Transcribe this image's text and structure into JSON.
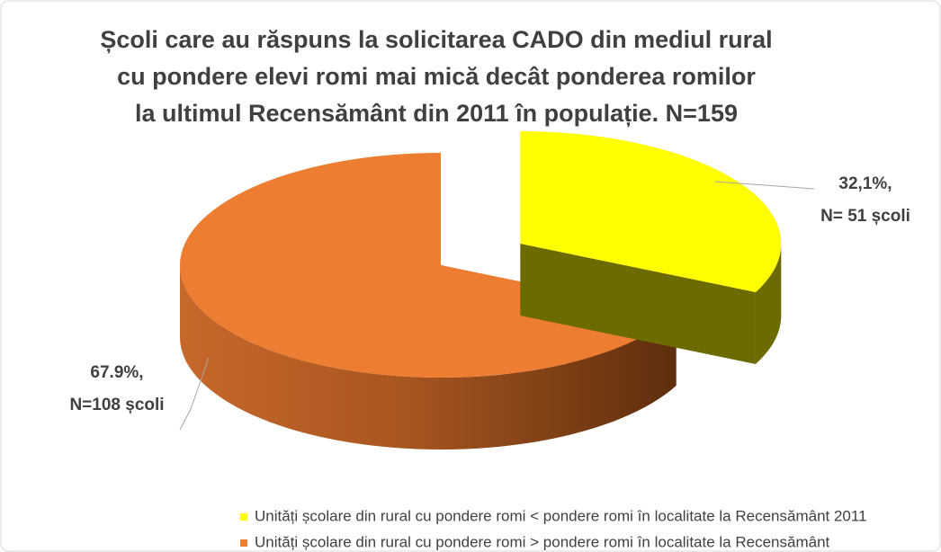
{
  "chart_data": {
    "type": "pie3d",
    "title": [
      "Școli care au răspuns la solicitarea CADO din mediul rural",
      "cu pondere elevi romi mai mică decât ponderea romilor",
      "la ultimul Recensământ din 2011 în populație. N=159"
    ],
    "categories": [
      "Unități școlare din rural cu pondere romi < pondere romi în localitate la Recensământ 2011",
      "Unități școlare din rural cu pondere romi >  pondere romi în localitate la Recensământ"
    ],
    "values": [
      32.1,
      67.9
    ],
    "value_labels": [
      [
        "32,1%,",
        "N= 51 școli"
      ],
      [
        "67.9%,",
        "N=108 școli"
      ]
    ],
    "colors": [
      "#ffff00",
      "#ed7d31"
    ],
    "legend": "bottom"
  }
}
